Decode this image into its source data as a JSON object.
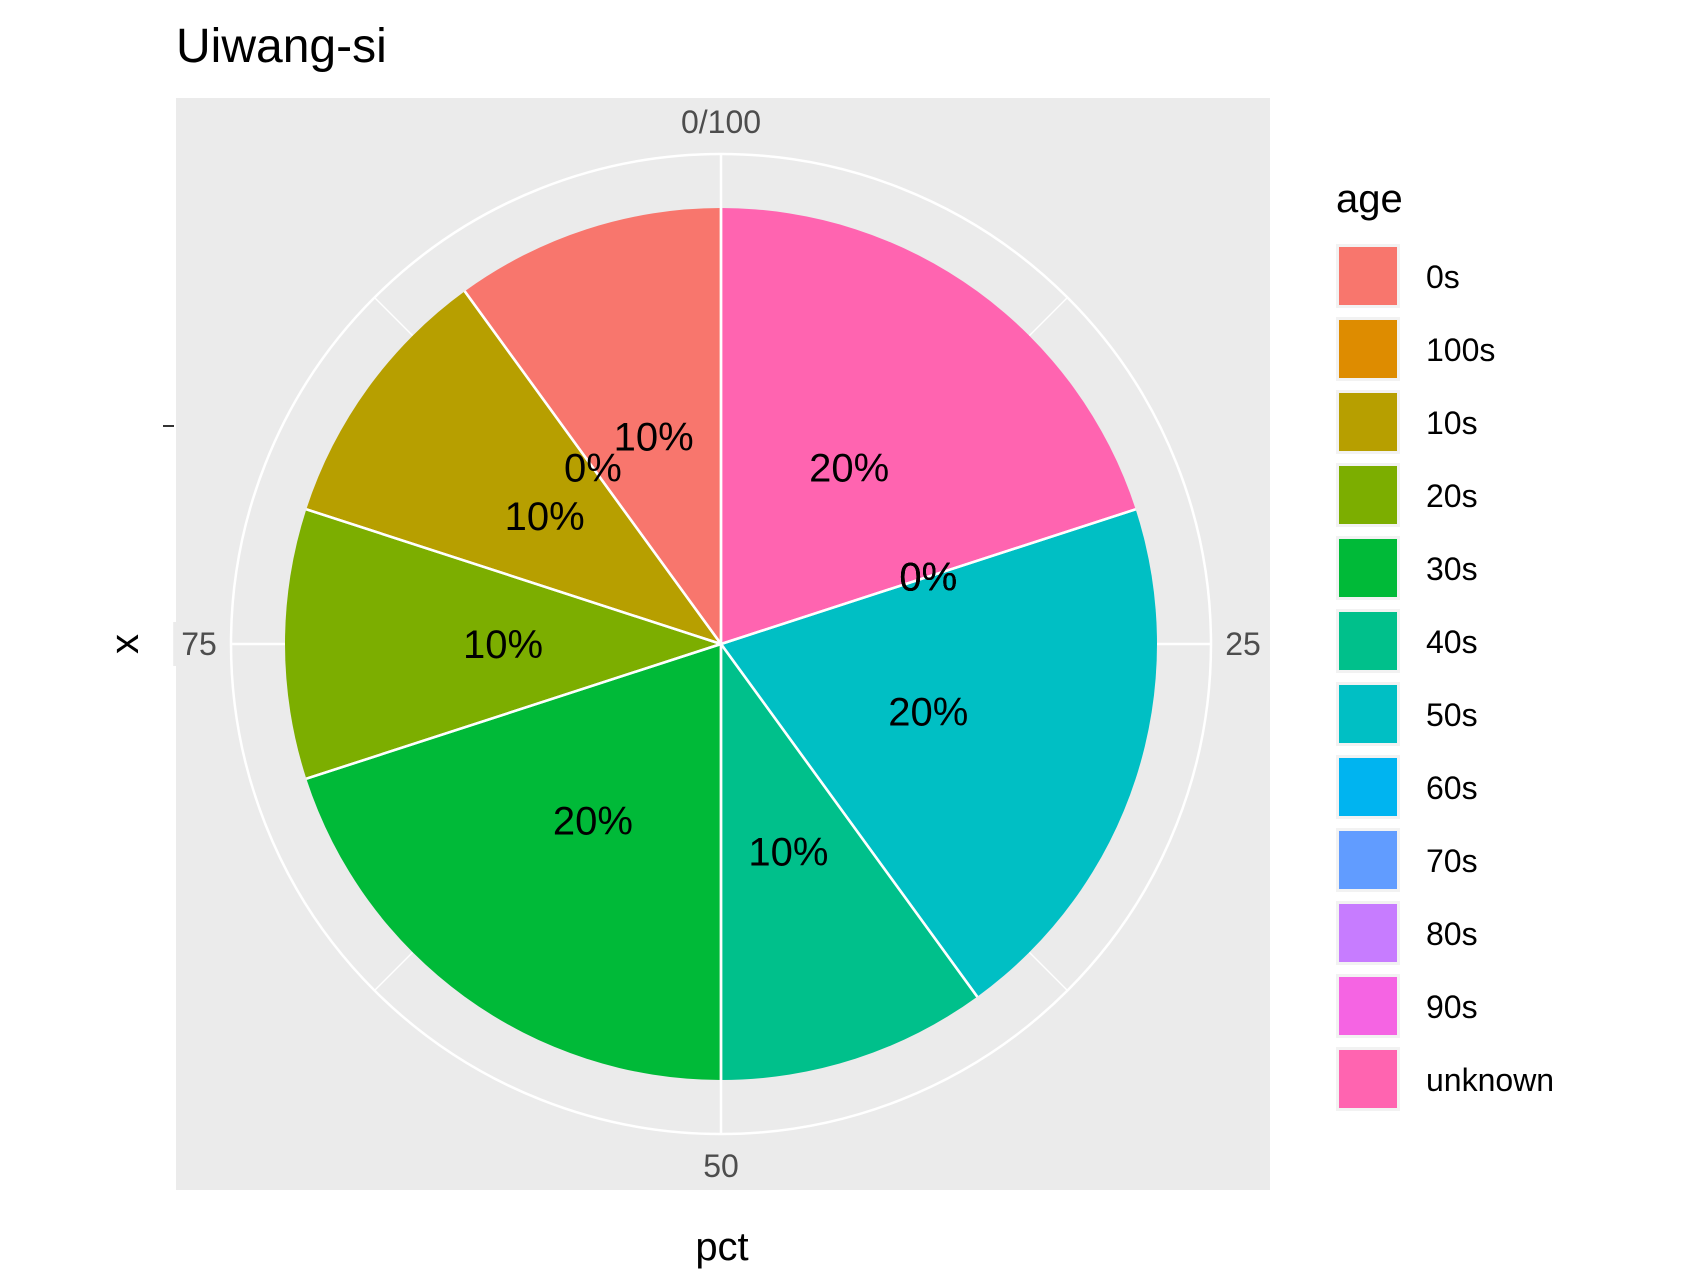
{
  "chart_data": {
    "type": "pie",
    "title": "Uiwang-si",
    "xlabel": "pct",
    "ylabel": "x",
    "theta_ticks": [
      "0/100",
      "25",
      "50",
      "75"
    ],
    "theta_tick_values": [
      0,
      25,
      50,
      75
    ],
    "legend_title": "age",
    "legend_position": "right",
    "categories": [
      "0s",
      "100s",
      "10s",
      "20s",
      "30s",
      "40s",
      "50s",
      "60s",
      "70s",
      "80s",
      "90s",
      "unknown"
    ],
    "values": [
      10,
      0,
      10,
      10,
      20,
      10,
      20,
      0,
      0,
      0,
      0,
      20
    ],
    "labels": [
      "10%",
      "0%",
      "10%",
      "10%",
      "20%",
      "10%",
      "20%",
      "0%",
      "0%",
      "0%",
      "0%",
      "20%"
    ],
    "colors": [
      "#F8766D",
      "#DE8C00",
      "#B79F00",
      "#7CAE00",
      "#00BA38",
      "#00C08B",
      "#00BFC4",
      "#00B4F0",
      "#619CFF",
      "#C77CFF",
      "#F564E3",
      "#FF64B0"
    ],
    "panel_background": "#EBEBEB",
    "grid": true
  }
}
